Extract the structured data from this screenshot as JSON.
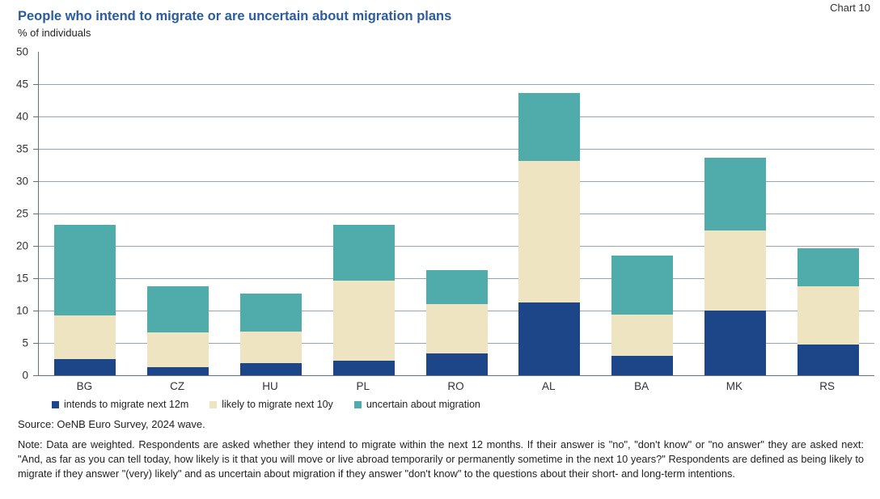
{
  "page": {
    "chart_label": "Chart 10",
    "title": "People who intend to migrate or are uncertain about migration plans",
    "subtitle": "% of individuals",
    "source": "Source: OeNB Euro Survey, 2024 wave.",
    "note": "Note: Data are weighted. Respondents are asked whether they intend to migrate within the next 12 months. If their answer is \"no\", \"don't know\" or \"no answer\" they are asked next: \"And, as far as you can tell today, how likely is it that you will move or live abroad temporarily or permanently sometime in the next 10 years?\" Respondents are defined as being likely to migrate if they answer \"(very) likely\" and as uncertain about migration if they answer \"don't know\" to the questions about their short- and long-term intentions."
  },
  "chart_data": {
    "type": "bar",
    "stacked": true,
    "title": "People who intend to migrate or are uncertain about migration plans",
    "ylabel": "% of individuals",
    "xlabel": "",
    "categories": [
      "BG",
      "CZ",
      "HU",
      "PL",
      "RO",
      "AL",
      "BA",
      "MK",
      "RS"
    ],
    "series": [
      {
        "name": "intends to migrate next 12m",
        "color": "#1c4688",
        "values": [
          2.5,
          1.2,
          1.9,
          2.2,
          3.4,
          11.2,
          3.0,
          10.0,
          4.7
        ]
      },
      {
        "name": "likely to migrate next 10y",
        "color": "#eee4c2",
        "values": [
          6.8,
          5.4,
          4.8,
          12.4,
          7.6,
          21.9,
          6.4,
          12.4,
          9.0
        ]
      },
      {
        "name": "uncertain about migration",
        "color": "#50abab",
        "values": [
          13.9,
          7.1,
          5.9,
          8.7,
          5.2,
          10.5,
          9.1,
          11.2,
          5.9
        ]
      }
    ],
    "totals": [
      23.2,
      13.7,
      12.6,
      23.3,
      16.2,
      43.6,
      18.5,
      33.6,
      19.6
    ],
    "ylim": [
      0,
      50
    ],
    "ytick_step": 5,
    "grid": "horizontal",
    "gridline_color": "#9aa4ac",
    "axis_color": "#667079",
    "legend_position": "bottom"
  }
}
